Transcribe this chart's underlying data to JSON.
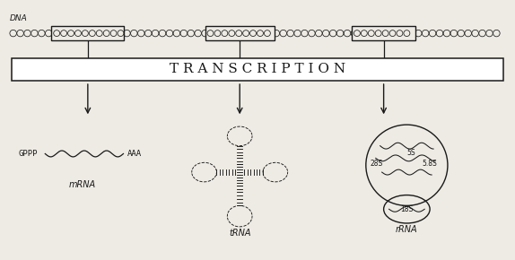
{
  "bg_color": "#eeebe4",
  "title": "T R A N S C R I P T I O N",
  "dna_label": "DNA",
  "mrna_label": "mRNA",
  "trna_label": "tRNA",
  "rrna_label": "rRNA",
  "gppp_label": "GPPP",
  "aaa_label": "AAA",
  "labels_28s": "28S",
  "labels_5s": "5S",
  "labels_5_8s": "5.8S",
  "labels_18s": "18S",
  "line_color": "#1a1a1a",
  "white": "#ffffff"
}
